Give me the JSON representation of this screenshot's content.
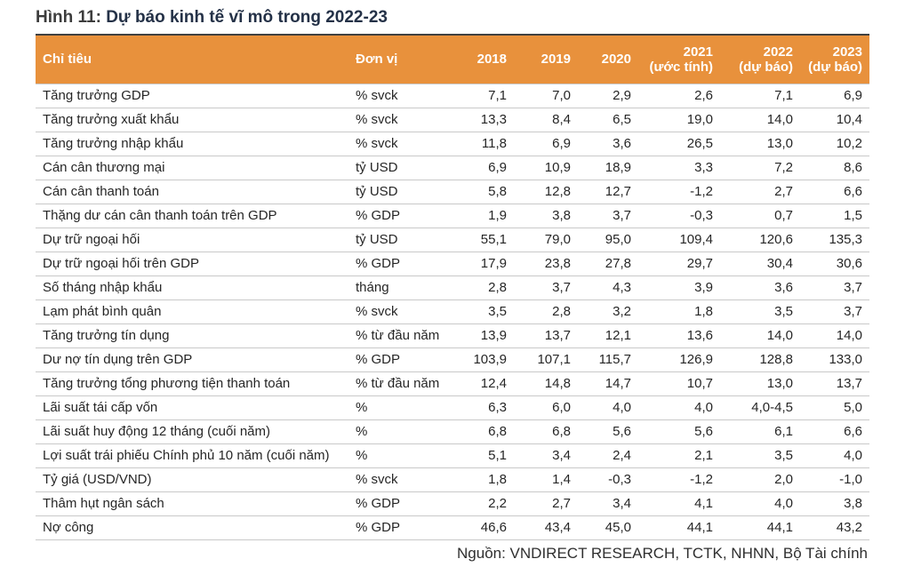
{
  "title": {
    "prefix": "Hình 11:",
    "text": "Dự báo kinh tế vĩ mô trong 2022-23"
  },
  "colors": {
    "header_bg": "#E8913C",
    "header_text": "#FFFFFF",
    "title_prefix": "#3C3C3C",
    "title_main": "#243147",
    "row_border": "#C9C9C9",
    "body_text": "#262626",
    "bottom_rule": "#1A1A1A"
  },
  "table": {
    "columns": [
      {
        "line1": "Chỉ tiêu"
      },
      {
        "line1": "Đơn vị"
      },
      {
        "line1": "2018"
      },
      {
        "line1": "2019"
      },
      {
        "line1": "2020"
      },
      {
        "line1": "2021",
        "line2": "(ước tính)"
      },
      {
        "line1": "2022",
        "line2": "(dự báo)"
      },
      {
        "line1": "2023",
        "line2": "(dự báo)"
      }
    ],
    "rows": [
      {
        "indicator": "Tăng trưởng GDP",
        "unit": "% svck",
        "values": [
          "7,1",
          "7,0",
          "2,9",
          "2,6",
          "7,1",
          "6,9"
        ]
      },
      {
        "indicator": "Tăng trưởng xuất khẩu",
        "unit": "% svck",
        "values": [
          "13,3",
          "8,4",
          "6,5",
          "19,0",
          "14,0",
          "10,4"
        ]
      },
      {
        "indicator": "Tăng trưởng nhập khẩu",
        "unit": "% svck",
        "values": [
          "11,8",
          "6,9",
          "3,6",
          "26,5",
          "13,0",
          "10,2"
        ]
      },
      {
        "indicator": "Cán cân thương mại",
        "unit": "tỷ USD",
        "values": [
          "6,9",
          "10,9",
          "18,9",
          "3,3",
          "7,2",
          "8,6"
        ]
      },
      {
        "indicator": "Cán cân thanh toán",
        "unit": "tỷ USD",
        "values": [
          "5,8",
          "12,8",
          "12,7",
          "-1,2",
          "2,7",
          "6,6"
        ]
      },
      {
        "indicator": "Thặng dư cán cân thanh toán trên GDP",
        "unit": "% GDP",
        "values": [
          "1,9",
          "3,8",
          "3,7",
          "-0,3",
          "0,7",
          "1,5"
        ]
      },
      {
        "indicator": "Dự trữ ngoại hối",
        "unit": "tỷ USD",
        "values": [
          "55,1",
          "79,0",
          "95,0",
          "109,4",
          "120,6",
          "135,3"
        ]
      },
      {
        "indicator": "Dự trữ ngoại hối trên GDP",
        "unit": "% GDP",
        "values": [
          "17,9",
          "23,8",
          "27,8",
          "29,7",
          "30,4",
          "30,6"
        ]
      },
      {
        "indicator": "Số tháng nhập khẩu",
        "unit": "tháng",
        "values": [
          "2,8",
          "3,7",
          "4,3",
          "3,9",
          "3,6",
          "3,7"
        ]
      },
      {
        "indicator": "Lạm phát bình quân",
        "unit": "% svck",
        "values": [
          "3,5",
          "2,8",
          "3,2",
          "1,8",
          "3,5",
          "3,7"
        ]
      },
      {
        "indicator": "Tăng trưởng tín dụng",
        "unit": "% từ đầu năm",
        "values": [
          "13,9",
          "13,7",
          "12,1",
          "13,6",
          "14,0",
          "14,0"
        ]
      },
      {
        "indicator": "Dư nợ tín dụng trên GDP",
        "unit": "% GDP",
        "values": [
          "103,9",
          "107,1",
          "115,7",
          "126,9",
          "128,8",
          "133,0"
        ]
      },
      {
        "indicator": "Tăng trưởng tổng phương tiện thanh toán",
        "unit": "% từ đầu năm",
        "values": [
          "12,4",
          "14,8",
          "14,7",
          "10,7",
          "13,0",
          "13,7"
        ]
      },
      {
        "indicator": "Lãi suất tái cấp vốn",
        "unit": "%",
        "values": [
          "6,3",
          "6,0",
          "4,0",
          "4,0",
          "4,0-4,5",
          "5,0"
        ]
      },
      {
        "indicator": "Lãi suất huy động 12 tháng (cuối năm)",
        "unit": "%",
        "values": [
          "6,8",
          "6,8",
          "5,6",
          "5,6",
          "6,1",
          "6,6"
        ]
      },
      {
        "indicator": "Lợi suất trái phiếu Chính phủ 10 năm (cuối năm)",
        "unit": "%",
        "values": [
          "5,1",
          "3,4",
          "2,4",
          "2,1",
          "3,5",
          "4,0"
        ]
      },
      {
        "indicator": "Tỷ giá (USD/VND)",
        "unit": "% svck",
        "values": [
          "1,8",
          "1,4",
          "-0,3",
          "-1,2",
          "2,0",
          "-1,0"
        ]
      },
      {
        "indicator": "Thâm hụt ngân sách",
        "unit": "% GDP",
        "values": [
          "2,2",
          "2,7",
          "3,4",
          "4,1",
          "4,0",
          "3,8"
        ]
      },
      {
        "indicator": "Nợ công",
        "unit": "% GDP",
        "values": [
          "46,6",
          "43,4",
          "45,0",
          "44,1",
          "44,1",
          "43,2"
        ]
      }
    ],
    "source": "Nguồn: VNDIRECT RESEARCH, TCTK, NHNN, Bộ Tài chính"
  }
}
